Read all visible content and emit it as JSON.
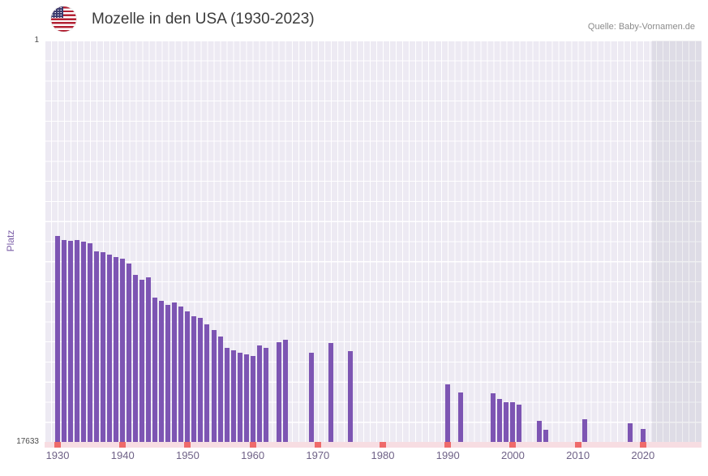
{
  "header": {
    "title": "Mozelle in den USA (1930-2023)",
    "source": "Quelle: Baby-Vornamen.de"
  },
  "axes": {
    "y_label": "Platz",
    "y_top_tick": "1",
    "y_bottom_tick": "17633",
    "x_ticks": [
      1930,
      1940,
      1950,
      1960,
      1970,
      1980,
      1990,
      2000,
      2010,
      2020
    ]
  },
  "colors": {
    "bar": "#7d55b3",
    "plot_bg": "#edeaf3",
    "baseline_band": "#f7dde2",
    "baseline_marker": "#ef6a6a",
    "x_tick_text": "#6f6287",
    "title_text": "#3b3b3b",
    "source_text": "#8b8b8b",
    "y_axis_label": "#7b5ea7"
  },
  "chart_data": {
    "type": "bar",
    "title": "Mozelle in den USA (1930-2023)",
    "xlabel": "",
    "ylabel": "Platz",
    "x_range": [
      1930,
      2023
    ],
    "y_axis": {
      "top": 1,
      "bottom": 17633,
      "inverted": true
    },
    "legend": "none",
    "grid": "on",
    "note_years_without_bar_have_no_rank": true,
    "ranks_by_year": {
      "1930": 8600,
      "1931": 8750,
      "1932": 8800,
      "1933": 8780,
      "1934": 8850,
      "1935": 8900,
      "1936": 9250,
      "1937": 9300,
      "1938": 9400,
      "1939": 9500,
      "1940": 9600,
      "1941": 9800,
      "1942": 10300,
      "1943": 10500,
      "1944": 10400,
      "1945": 11300,
      "1946": 11450,
      "1947": 11600,
      "1948": 11500,
      "1949": 11700,
      "1950": 11900,
      "1951": 12100,
      "1952": 12200,
      "1953": 12450,
      "1954": 12700,
      "1955": 13000,
      "1956": 13500,
      "1957": 13600,
      "1958": 13700,
      "1959": 13800,
      "1960": 13850,
      "1961": 13400,
      "1962": 13500,
      "1964": 13250,
      "1965": 13150,
      "1969": 13700,
      "1972": 13300,
      "1975": 13650,
      "1990": 15100,
      "1992": 15450,
      "1997": 15500,
      "1998": 15750,
      "1999": 15900,
      "2000": 15900,
      "2001": 16000,
      "2004": 16700,
      "2005": 17100,
      "2011": 16650,
      "2018": 16800,
      "2020": 17050
    }
  }
}
